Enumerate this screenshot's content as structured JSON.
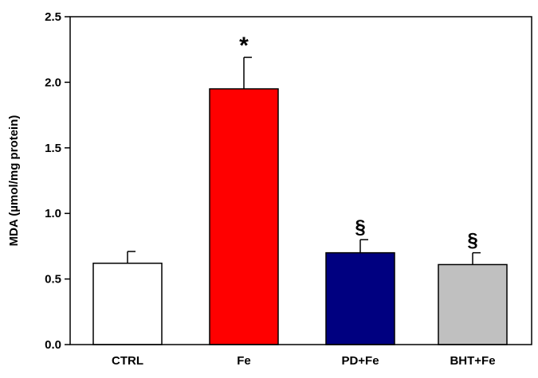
{
  "chart_data": {
    "type": "bar",
    "title": "",
    "xlabel": "",
    "ylabel": "MDA (µmol/mg protein)",
    "ylim": [
      0,
      2.5
    ],
    "yticks": [
      "0.0",
      "0.5",
      "1.0",
      "1.5",
      "2.0",
      "2.5"
    ],
    "grid": false,
    "categories": [
      "CTRL",
      "Fe",
      "PD+Fe",
      "BHT+Fe"
    ],
    "values": [
      0.62,
      1.95,
      0.7,
      0.61
    ],
    "errors": [
      0.09,
      0.24,
      0.1,
      0.09
    ],
    "colors": [
      "#ffffff",
      "#ff0000",
      "#000080",
      "#c0c0c0"
    ],
    "annotations": [
      "",
      "*",
      "§",
      "§"
    ]
  }
}
